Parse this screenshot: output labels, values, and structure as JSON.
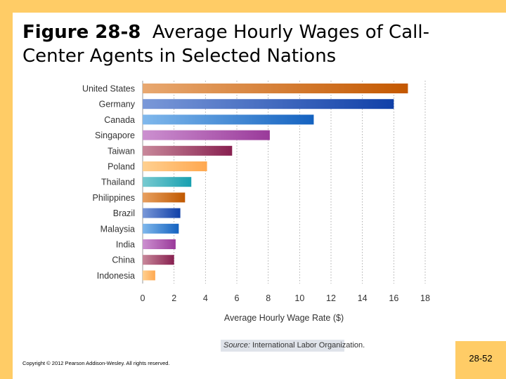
{
  "slide": {
    "figure_number": "Figure 28-8",
    "title": "Average Hourly Wages of Call-Center Agents in Selected Nations",
    "source_label": "Source:",
    "source_text": "International Labor Organization.",
    "copyright": "Copyright © 2012 Pearson Addison-Wesley. All rights reserved.",
    "page_number": "28-52"
  },
  "colors": {
    "accent": "#ffcc66",
    "grid": "#999999",
    "source_bg": "#dfe3ea"
  },
  "chart_data": {
    "type": "bar",
    "orientation": "horizontal",
    "categories": [
      "United States",
      "Germany",
      "Canada",
      "Singapore",
      "Taiwan",
      "Poland",
      "Thailand",
      "Philippines",
      "Brazil",
      "Malaysia",
      "India",
      "China",
      "Indonesia"
    ],
    "values": [
      16.9,
      16.0,
      10.9,
      8.1,
      5.7,
      4.1,
      3.1,
      2.7,
      2.4,
      2.3,
      2.1,
      2.0,
      0.8
    ],
    "bar_colors": [
      [
        "#e8a870",
        "#c45800"
      ],
      [
        "#7a98d8",
        "#1040a8"
      ],
      [
        "#80b8ec",
        "#1462c0"
      ],
      [
        "#cc90d0",
        "#9a3a9a"
      ],
      [
        "#c8889a",
        "#882050"
      ],
      [
        "#ffd090",
        "#ffa850"
      ],
      [
        "#78cad0",
        "#18a0b0"
      ],
      [
        "#e8a060",
        "#c05800"
      ],
      [
        "#7a98d8",
        "#1040a8"
      ],
      [
        "#80b8ec",
        "#1462c0"
      ],
      [
        "#cc90d0",
        "#9a3a9a"
      ],
      [
        "#c8889a",
        "#882050"
      ],
      [
        "#ffd090",
        "#ffa850"
      ]
    ],
    "xlabel": "Average Hourly Wage Rate ($)",
    "ylabel": "",
    "xlim": [
      0,
      18
    ],
    "xticks": [
      0,
      2,
      4,
      6,
      8,
      10,
      12,
      14,
      16,
      18
    ],
    "grid": "vertical dotted"
  }
}
